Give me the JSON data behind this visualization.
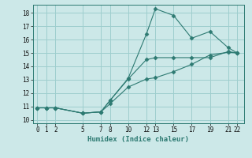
{
  "xlabel": "Humidex (Indice chaleur)",
  "bg_color": "#cce8e8",
  "grid_color": "#9ecece",
  "line_color": "#2d7a72",
  "xlim": [
    -0.5,
    22.8
  ],
  "ylim": [
    9.75,
    18.6
  ],
  "xticks": [
    0,
    1,
    2,
    5,
    7,
    8,
    10,
    12,
    13,
    15,
    17,
    19,
    21,
    22
  ],
  "yticks": [
    10,
    11,
    12,
    13,
    14,
    15,
    16,
    17,
    18
  ],
  "line1_x": [
    0,
    1,
    2,
    5,
    7,
    8,
    10,
    12,
    13,
    15,
    17,
    19,
    21,
    22
  ],
  "line1_y": [
    10.9,
    10.9,
    10.9,
    10.5,
    10.6,
    11.45,
    13.1,
    16.4,
    18.3,
    17.8,
    16.1,
    16.6,
    15.4,
    15.0
  ],
  "line2_x": [
    0,
    1,
    2,
    5,
    7,
    8,
    10,
    12,
    13,
    15,
    17,
    19,
    21,
    22
  ],
  "line2_y": [
    10.9,
    10.9,
    10.9,
    10.5,
    10.6,
    11.45,
    13.05,
    14.5,
    14.65,
    14.65,
    14.65,
    14.65,
    15.1,
    15.0
  ],
  "line3_x": [
    0,
    1,
    2,
    5,
    7,
    8,
    10,
    12,
    13,
    15,
    17,
    19,
    21,
    22
  ],
  "line3_y": [
    10.9,
    10.9,
    10.9,
    10.5,
    10.6,
    11.2,
    12.45,
    13.05,
    13.15,
    13.6,
    14.15,
    14.85,
    15.05,
    15.0
  ]
}
